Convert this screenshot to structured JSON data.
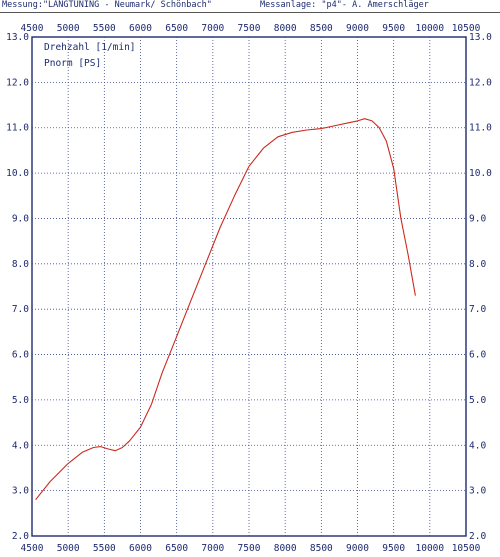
{
  "header": {
    "measurement": "Messung:\"LANGTUNING - Neumark/ Schönbach\"",
    "rig": "Messanlage: \"p4\"- A. Amerschläger"
  },
  "chart_data": {
    "type": "line",
    "title": "",
    "legend": [
      "Drehzahl [1/min]",
      "Pnorm [PS]"
    ],
    "legend_placement": "top-left",
    "grid": true,
    "xlim": [
      4500,
      10500
    ],
    "ylim": [
      2.0,
      13.0
    ],
    "x_ticks": [
      "4500",
      "5000",
      "5500",
      "6000",
      "6500",
      "7000",
      "7500",
      "8000",
      "8500",
      "9000",
      "9500",
      "10000",
      "10500"
    ],
    "y_ticks": [
      "2.0",
      "3.0",
      "4.0",
      "5.0",
      "6.0",
      "7.0",
      "8.0",
      "9.0",
      "10.0",
      "11.0",
      "12.0",
      "13.0"
    ],
    "series": [
      {
        "name": "Pnorm [PS]",
        "color": "#cc2a1e",
        "x": [
          4550,
          4750,
          5000,
          5200,
          5350,
          5450,
          5550,
          5650,
          5750,
          5850,
          6000,
          6150,
          6300,
          6500,
          6700,
          6900,
          7100,
          7300,
          7500,
          7700,
          7900,
          8100,
          8300,
          8500,
          8700,
          8850,
          9000,
          9100,
          9200,
          9300,
          9400,
          9500,
          9600,
          9700,
          9800
        ],
        "y": [
          2.8,
          3.2,
          3.6,
          3.85,
          3.95,
          3.97,
          3.92,
          3.88,
          3.95,
          4.1,
          4.4,
          4.9,
          5.6,
          6.4,
          7.2,
          8.0,
          8.8,
          9.5,
          10.15,
          10.55,
          10.8,
          10.9,
          10.95,
          10.98,
          11.05,
          11.1,
          11.15,
          11.2,
          11.15,
          11.0,
          10.7,
          10.1,
          9.0,
          8.2,
          7.3
        ]
      }
    ]
  }
}
